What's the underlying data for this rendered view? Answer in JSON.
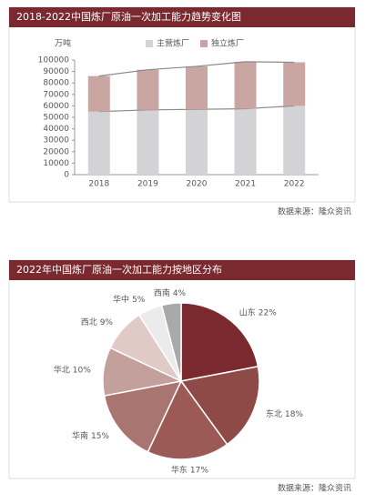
{
  "chart_data": [
    {
      "type": "bar",
      "title": "2018-2022中国炼厂原油一次加工能力趋势变化图",
      "y_label": "万吨",
      "source": "数据来源：隆众资讯",
      "categories": [
        "2018",
        "2019",
        "2020",
        "2021",
        "2022"
      ],
      "series": [
        {
          "name": "主营炼厂",
          "color": "#d3d3d5",
          "values": [
            55000,
            56500,
            57000,
            57500,
            60000
          ]
        },
        {
          "name": "独立炼厂",
          "color": "#c9a6a1",
          "values": [
            31000,
            35000,
            37500,
            41000,
            38000
          ]
        }
      ],
      "stacked": true,
      "line_color": "#8a8a8a",
      "ylim": [
        0,
        100000
      ],
      "yticks": [
        0,
        10000,
        20000,
        30000,
        40000,
        50000,
        60000,
        70000,
        80000,
        90000,
        100000
      ]
    },
    {
      "type": "pie",
      "title": "2022年中国炼厂原油一次加工能力按地区分布",
      "source": "数据来源：隆众资讯",
      "categories": [
        "山东",
        "东北",
        "华东",
        "华南",
        "华北",
        "西北",
        "华中",
        "西南"
      ],
      "values": [
        22,
        18,
        17,
        15,
        10,
        9,
        5,
        4
      ],
      "value_labels": [
        "22%",
        "18%",
        "17%",
        "15%",
        "10%",
        "9%",
        "5%",
        "4%"
      ],
      "colors": [
        "#7a2a2e",
        "#8e4a46",
        "#9b5a55",
        "#a87570",
        "#c4a09c",
        "#e0cac6",
        "#ebebeb",
        "#a7a9ab"
      ]
    }
  ]
}
